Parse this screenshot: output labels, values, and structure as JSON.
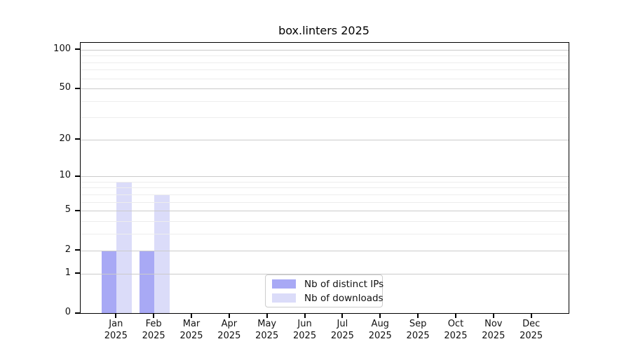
{
  "title": "box.linters 2025",
  "chart_data": {
    "type": "bar",
    "categories": [
      "Jan",
      "Feb",
      "Mar",
      "Apr",
      "May",
      "Jun",
      "Jul",
      "Aug",
      "Sep",
      "Oct",
      "Nov",
      "Dec"
    ],
    "year": "2025",
    "series": [
      {
        "name": "Nb of distinct IPs",
        "color": "#a8a9f5",
        "values": [
          2,
          2,
          0,
          0,
          0,
          0,
          0,
          0,
          0,
          0,
          0,
          0
        ]
      },
      {
        "name": "Nb of downloads",
        "color": "#dbdcf9",
        "values": [
          9,
          7,
          0,
          0,
          0,
          0,
          0,
          0,
          0,
          0,
          0,
          0
        ]
      }
    ],
    "scale": "log1p",
    "ylim": [
      0,
      113
    ],
    "y_major_ticks": [
      0,
      1,
      2,
      5,
      10,
      20,
      50,
      100
    ],
    "y_minor_ticks": [
      3,
      4,
      6,
      7,
      8,
      9,
      30,
      40,
      60,
      70,
      80,
      90
    ],
    "grid": true,
    "legend_position": "lower center inside",
    "axis_color": "#000000",
    "grid_major_color": "#cbcbcb",
    "grid_minor_color": "#ededed"
  }
}
